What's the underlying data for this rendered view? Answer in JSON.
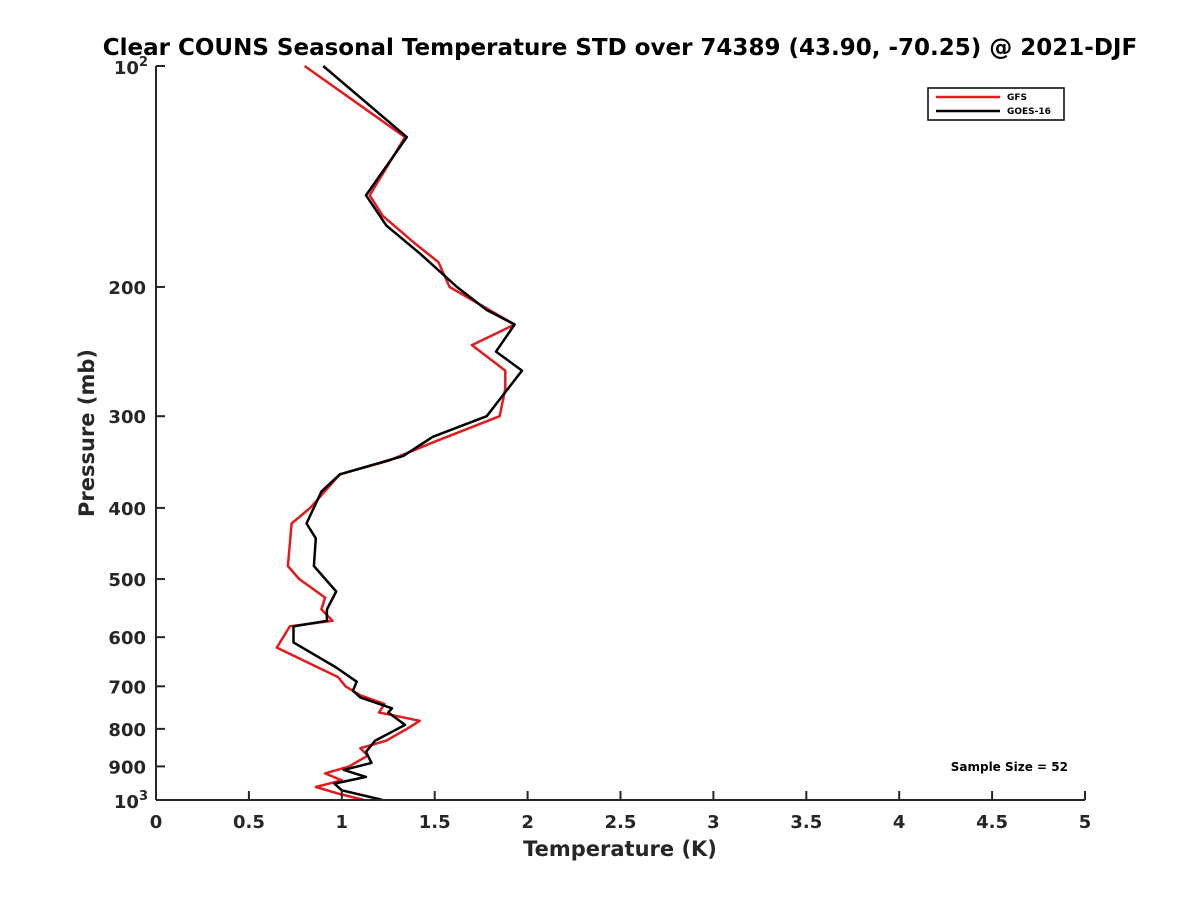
{
  "chart_data": {
    "type": "line",
    "title": "Clear COUNS Seasonal Temperature STD over 74389 (43.90, -70.25) @ 2021-DJF",
    "xlabel": "Temperature (K)",
    "ylabel": "Pressure (mb)",
    "xlim": [
      0,
      5
    ],
    "ylim": [
      100,
      1000
    ],
    "y_scale": "log",
    "y_reversed": true,
    "x_ticks": [
      "0",
      "0.5",
      "1",
      "1.5",
      "2",
      "2.5",
      "3",
      "3.5",
      "4",
      "4.5",
      "5"
    ],
    "y_ticks": [
      {
        "value": 100,
        "base": "10",
        "exp": "2"
      },
      {
        "value": 200,
        "label": "200"
      },
      {
        "value": 300,
        "label": "300"
      },
      {
        "value": 400,
        "label": "400"
      },
      {
        "value": 500,
        "label": "500"
      },
      {
        "value": 600,
        "label": "600"
      },
      {
        "value": 700,
        "label": "700"
      },
      {
        "value": 800,
        "label": "800"
      },
      {
        "value": 900,
        "label": "900"
      },
      {
        "value": 1000,
        "base": "10",
        "exp": "3"
      }
    ],
    "grid": false,
    "legend_position": "top-right",
    "annotation": "Sample Size = 52",
    "series": [
      {
        "name": "GFS",
        "color": "#e41a1c",
        "points": [
          [
            0.8,
            100
          ],
          [
            1.34,
            125
          ],
          [
            1.15,
            150
          ],
          [
            1.22,
            160
          ],
          [
            1.4,
            175
          ],
          [
            1.52,
            185
          ],
          [
            1.58,
            200
          ],
          [
            1.93,
            225
          ],
          [
            1.7,
            240
          ],
          [
            1.88,
            260
          ],
          [
            1.88,
            275
          ],
          [
            1.85,
            300
          ],
          [
            1.5,
            325
          ],
          [
            1.25,
            345
          ],
          [
            0.99,
            360
          ],
          [
            0.83,
            400
          ],
          [
            0.73,
            420
          ],
          [
            0.71,
            480
          ],
          [
            0.77,
            500
          ],
          [
            0.91,
            530
          ],
          [
            0.89,
            550
          ],
          [
            0.95,
            570
          ],
          [
            0.72,
            580
          ],
          [
            0.65,
            620
          ],
          [
            0.98,
            680
          ],
          [
            1.02,
            700
          ],
          [
            1.1,
            720
          ],
          [
            1.23,
            740
          ],
          [
            1.2,
            760
          ],
          [
            1.42,
            780
          ],
          [
            1.35,
            800
          ],
          [
            1.24,
            830
          ],
          [
            1.1,
            850
          ],
          [
            1.14,
            870
          ],
          [
            1.04,
            900
          ],
          [
            0.91,
            920
          ],
          [
            1.0,
            940
          ],
          [
            0.86,
            960
          ],
          [
            0.98,
            980
          ],
          [
            1.12,
            1000
          ]
        ]
      },
      {
        "name": "GOES-16",
        "color": "#000000",
        "points": [
          [
            0.9,
            100
          ],
          [
            1.35,
            125
          ],
          [
            1.13,
            150
          ],
          [
            1.24,
            165
          ],
          [
            1.42,
            180
          ],
          [
            1.62,
            200
          ],
          [
            1.78,
            215
          ],
          [
            1.93,
            225
          ],
          [
            1.83,
            245
          ],
          [
            1.97,
            260
          ],
          [
            1.78,
            300
          ],
          [
            1.49,
            320
          ],
          [
            1.33,
            340
          ],
          [
            0.99,
            360
          ],
          [
            0.89,
            380
          ],
          [
            0.81,
            420
          ],
          [
            0.86,
            440
          ],
          [
            0.85,
            480
          ],
          [
            0.97,
            520
          ],
          [
            0.92,
            550
          ],
          [
            0.92,
            570
          ],
          [
            0.74,
            580
          ],
          [
            0.74,
            610
          ],
          [
            0.97,
            660
          ],
          [
            1.08,
            690
          ],
          [
            1.06,
            710
          ],
          [
            1.1,
            725
          ],
          [
            1.27,
            750
          ],
          [
            1.25,
            760
          ],
          [
            1.34,
            790
          ],
          [
            1.26,
            810
          ],
          [
            1.18,
            830
          ],
          [
            1.13,
            860
          ],
          [
            1.16,
            890
          ],
          [
            1.01,
            910
          ],
          [
            1.13,
            930
          ],
          [
            0.96,
            950
          ],
          [
            1.0,
            970
          ],
          [
            1.22,
            1000
          ]
        ]
      }
    ]
  }
}
